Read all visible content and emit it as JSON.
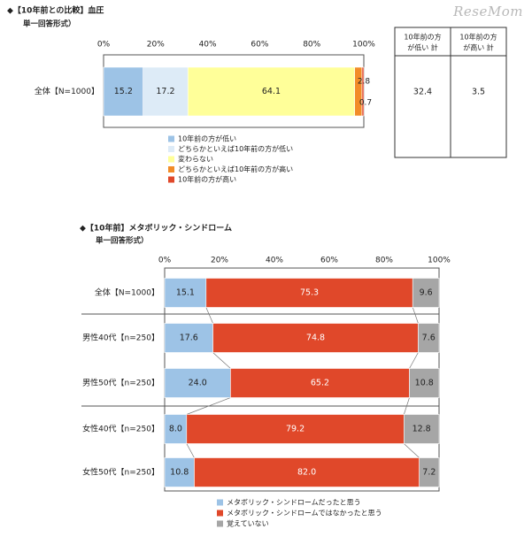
{
  "watermark": "ReseMom",
  "colors": {
    "c1": "#9dc3e6",
    "c2": "#ddebf7",
    "c3": "#ffff99",
    "c4": "#f28c28",
    "c5": "#e0482a",
    "grey": "#a6a6a6",
    "frame": "#555555"
  },
  "chart1": {
    "title": "◆【10年前との比較】血圧",
    "subtitle": "単一回答形式）",
    "ticks": [
      "0%",
      "20%",
      "40%",
      "60%",
      "80%",
      "100%"
    ],
    "table_headers": [
      "10年前の方が低い 計",
      "10年前の方が高い 計"
    ],
    "legend": [
      "10年前の方が低い",
      "どちらかといえば10年前の方が低い",
      "変わらない",
      "どちらかといえば10年前の方が高い",
      "10年前の方が高い"
    ]
  },
  "chart2": {
    "title": "◆【10年前】メタボリック・シンドローム",
    "subtitle": "単一回答形式）",
    "ticks": [
      "0%",
      "20%",
      "40%",
      "60%",
      "80%",
      "100%"
    ],
    "legend": [
      "メタボリック・シンドロームだったと思う",
      "メタボリック・シンドロームではなかったと思う",
      "覚えていない"
    ]
  },
  "chart_data": [
    {
      "type": "bar",
      "orientation": "horizontal",
      "stacked": true,
      "title": "◆【10年前との比較】血圧",
      "subtitle": "単一回答形式）",
      "xlim": [
        0,
        100
      ],
      "categories": [
        "全体【N=1000】"
      ],
      "series": [
        {
          "name": "10年前の方が低い",
          "values": [
            15.2
          ]
        },
        {
          "name": "どちらかといえば10年前の方が低い",
          "values": [
            17.2
          ]
        },
        {
          "name": "変わらない",
          "values": [
            64.1
          ]
        },
        {
          "name": "どちらかといえば10年前の方が高い",
          "values": [
            2.8
          ]
        },
        {
          "name": "10年前の方が高い",
          "values": [
            0.7
          ]
        }
      ],
      "table": {
        "headers": [
          "10年前の方が低い 計",
          "10年前の方が高い 計"
        ],
        "values": [
          "32.4",
          "3.5"
        ]
      },
      "grid": false,
      "legend_position": "bottom-left"
    },
    {
      "type": "bar",
      "orientation": "horizontal",
      "stacked": true,
      "title": "◆【10年前】メタボリック・シンドローム",
      "subtitle": "単一回答形式）",
      "xlim": [
        0,
        100
      ],
      "categories": [
        "全体【N=1000】",
        "男性40代【n=250】",
        "男性50代【n=250】",
        "女性40代【n=250】",
        "女性50代【n=250】"
      ],
      "series": [
        {
          "name": "メタボリック・シンドロームだったと思う",
          "values": [
            15.1,
            17.6,
            24.0,
            8.0,
            10.8
          ]
        },
        {
          "name": "メタボリック・シンドロームではなかったと思う",
          "values": [
            75.3,
            74.8,
            65.2,
            79.2,
            82.0
          ]
        },
        {
          "name": "覚えていない",
          "values": [
            9.6,
            7.6,
            10.8,
            12.8,
            7.2
          ]
        }
      ],
      "grid": false,
      "legend_position": "bottom-left"
    }
  ]
}
